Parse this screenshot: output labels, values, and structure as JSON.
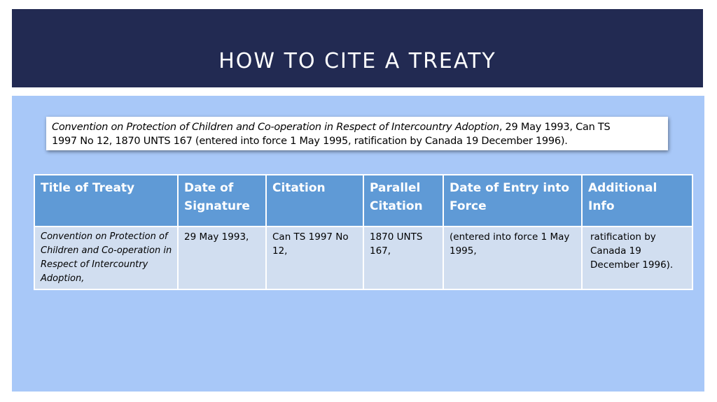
{
  "slide": {
    "title": "HOW TO CITE A TREATY"
  },
  "citation": {
    "italic_part": "Convention on Protection of Children and Co-operation in Respect of Intercountry Adoption",
    "rest_line1": ", 29 May 1993, Can TS",
    "rest_line2": "1997  No 12, 1870 UNTS 167 (entered into force 1 May 1995, ratification by Canada 19 December 1996)."
  },
  "table": {
    "headers": [
      "Title of Treaty",
      "Date of Signature",
      "Citation",
      "Parallel Citation",
      "Date of Entry into Force",
      "Additional Info"
    ],
    "row": [
      "Convention on Protection of Children and Co-operation in Respect of Intercountry Adoption,",
      "29 May 1993,",
      "Can TS 1997 No 12,",
      "1870 UNTS 167,",
      "(entered into force 1 May 1995,",
      "ratification by Canada 19 December 1996)."
    ]
  },
  "colors": {
    "header_band": "#222a52",
    "content_band": "#a8c8f8",
    "table_header": "#5f9ad6",
    "table_cell": "#d1def0"
  }
}
